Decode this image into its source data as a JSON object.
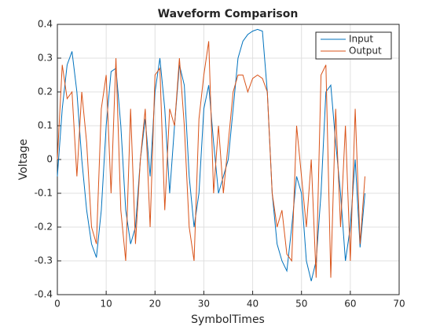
{
  "chart_data": {
    "type": "line",
    "title": "Waveform Comparison",
    "xlabel": "SymbolTimes",
    "ylabel": "Voltage",
    "x": [
      0,
      1,
      2,
      3,
      4,
      5,
      6,
      7,
      8,
      9,
      10,
      11,
      12,
      13,
      14,
      15,
      16,
      17,
      18,
      19,
      20,
      21,
      22,
      23,
      24,
      25,
      26,
      27,
      28,
      29,
      30,
      31,
      32,
      33,
      34,
      35,
      36,
      37,
      38,
      39,
      40,
      41,
      42,
      43,
      44,
      45,
      46,
      47,
      48,
      49,
      50,
      51,
      52,
      53,
      54,
      55,
      56,
      57,
      58,
      59,
      60,
      61,
      62,
      63
    ],
    "series": [
      {
        "name": "Input",
        "color": "#0072BD",
        "values": [
          -0.05,
          0.15,
          0.28,
          0.32,
          0.2,
          0.0,
          -0.15,
          -0.25,
          -0.29,
          -0.15,
          0.1,
          0.26,
          0.27,
          0.1,
          -0.15,
          -0.25,
          -0.2,
          0.0,
          0.12,
          -0.05,
          0.2,
          0.3,
          0.15,
          -0.1,
          0.1,
          0.28,
          0.22,
          -0.05,
          -0.2,
          -0.1,
          0.15,
          0.22,
          0.05,
          -0.1,
          -0.05,
          0.0,
          0.15,
          0.3,
          0.35,
          0.37,
          0.38,
          0.385,
          0.38,
          0.2,
          -0.1,
          -0.25,
          -0.3,
          -0.33,
          -0.2,
          -0.05,
          -0.1,
          -0.3,
          -0.36,
          -0.3,
          -0.1,
          0.2,
          0.22,
          0.05,
          -0.1,
          -0.3,
          -0.2,
          0.0,
          -0.26,
          -0.1
        ]
      },
      {
        "name": "Output",
        "color": "#D95319",
        "values": [
          0.0,
          0.28,
          0.18,
          0.2,
          -0.05,
          0.2,
          0.05,
          -0.2,
          -0.25,
          0.15,
          0.25,
          -0.1,
          0.3,
          -0.15,
          -0.3,
          0.15,
          -0.25,
          0.0,
          0.15,
          -0.2,
          0.25,
          0.27,
          -0.15,
          0.15,
          0.1,
          0.3,
          0.1,
          -0.2,
          -0.3,
          0.12,
          0.25,
          0.35,
          -0.1,
          0.1,
          -0.1,
          0.05,
          0.2,
          0.25,
          0.25,
          0.2,
          0.24,
          0.25,
          0.24,
          0.2,
          -0.1,
          -0.2,
          -0.15,
          -0.28,
          -0.3,
          0.1,
          -0.05,
          -0.2,
          0.0,
          -0.35,
          0.25,
          0.28,
          -0.35,
          0.15,
          -0.2,
          0.1,
          -0.3,
          0.15,
          -0.25,
          -0.05
        ]
      }
    ],
    "xlim": [
      0,
      70
    ],
    "xticks": [
      0,
      10,
      20,
      30,
      40,
      50,
      60,
      70
    ],
    "ylim": [
      -0.4,
      0.4
    ],
    "yticks": [
      -0.4,
      -0.3,
      -0.2,
      -0.1,
      0,
      0.1,
      0.2,
      0.3,
      0.4
    ],
    "grid": true,
    "legend": "northeast"
  }
}
